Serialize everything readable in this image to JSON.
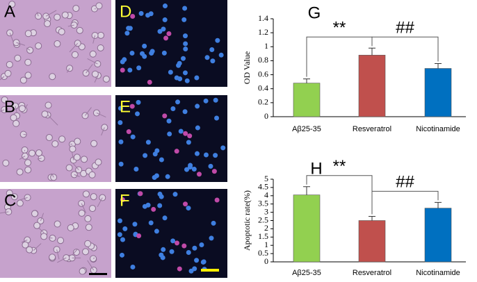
{
  "panels": [
    "A",
    "B",
    "C",
    "D",
    "E",
    "F"
  ],
  "chart_data": [
    {
      "type": "bar",
      "label": "G",
      "ylabel": "OD Value",
      "categories": [
        "Aβ25-35",
        "Resveratrol",
        "Nicotinamide"
      ],
      "values": [
        0.48,
        0.88,
        0.69
      ],
      "errors": [
        0.06,
        0.1,
        0.07
      ],
      "colors": [
        "#92d050",
        "#c0504d",
        "#0070c0"
      ],
      "ylim": [
        0,
        1.4
      ],
      "yticks": [
        0,
        0.2,
        0.4,
        0.6,
        0.8,
        1,
        1.2,
        1.4
      ],
      "annotations": [
        "**",
        "##"
      ]
    },
    {
      "type": "bar",
      "label": "H",
      "ylabel": "Apoptotic rate(%)",
      "categories": [
        "Aβ25-35",
        "Resveratrol",
        "Nicotinamide"
      ],
      "values": [
        4.05,
        2.5,
        3.25
      ],
      "errors": [
        0.5,
        0.25,
        0.35
      ],
      "colors": [
        "#92d050",
        "#c0504d",
        "#0070c0"
      ],
      "ylim": [
        0,
        5
      ],
      "yticks": [
        0,
        0.5,
        1,
        1.5,
        2,
        2.5,
        3,
        3.5,
        4,
        4.5,
        5
      ],
      "annotations": [
        "**",
        "##"
      ]
    }
  ]
}
